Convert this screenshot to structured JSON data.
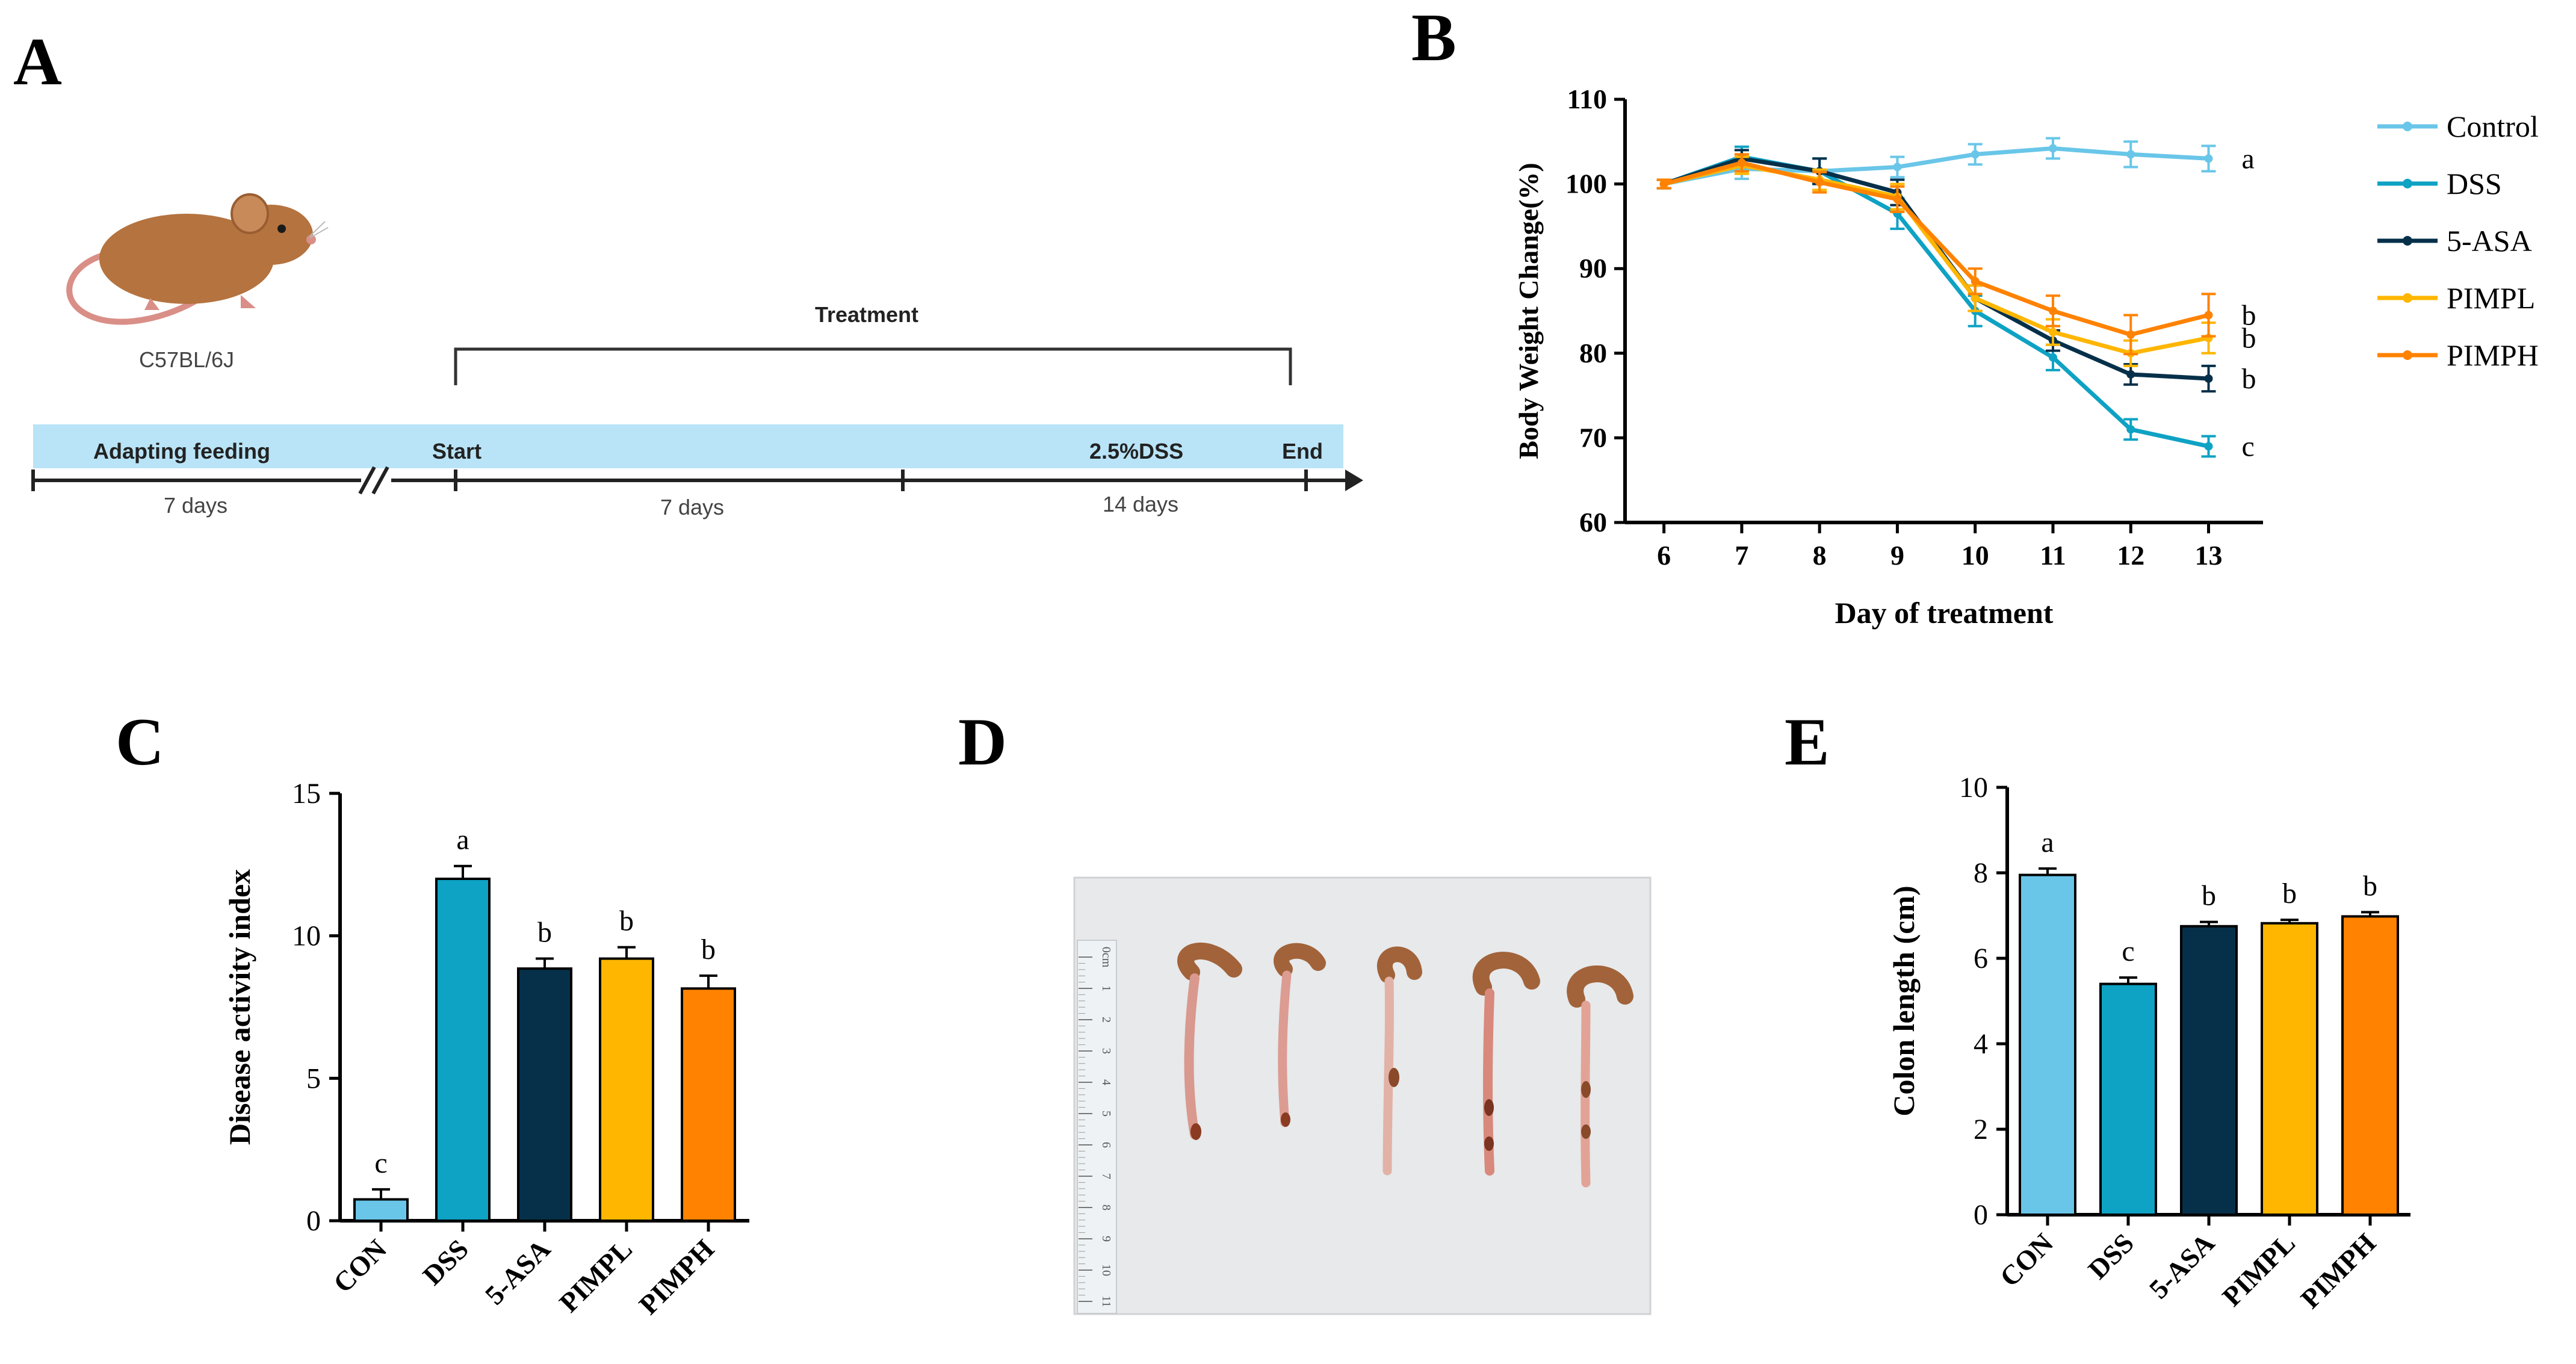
{
  "panel_labels": {
    "A": "A",
    "B": "B",
    "C": "C",
    "D": "D",
    "E": "E"
  },
  "colors": {
    "control": "#69c6e8",
    "dss": "#0ea2c4",
    "asa": "#06304a",
    "pimpl": "#ffb600",
    "pimph": "#ff8200",
    "timeline_bar": "#b9e4f7",
    "mouse_body": "#b5733f",
    "mouse_tail": "#d98f87"
  },
  "timeline": {
    "mouse_strain": "C57BL/6J",
    "treatment_label": "Treatment",
    "adapting_label": "Adapting feeding",
    "start_label": "Start",
    "dss_label": "2.5%DSS",
    "end_label": "End",
    "duration_1": "7 days",
    "duration_2": "7 days",
    "duration_3": "14 days"
  },
  "photo": {
    "ruler_numbers": [
      "0cm",
      "1",
      "2",
      "3",
      "4",
      "5",
      "6",
      "7",
      "8",
      "9",
      "10",
      "11"
    ]
  },
  "chart_data": [
    {
      "id": "B",
      "type": "line",
      "title": "",
      "xlabel": "Day of treatment",
      "ylabel": "Body Weight Change(%)",
      "x": [
        6,
        7,
        8,
        9,
        10,
        11,
        12,
        13
      ],
      "xlim": [
        5.5,
        13.7
      ],
      "ylim": [
        60,
        110
      ],
      "yticks": [
        60,
        70,
        80,
        90,
        100,
        110
      ],
      "legend_position": "right",
      "series": [
        {
          "name": "Control",
          "color_key": "control",
          "values": [
            100,
            101.8,
            101.5,
            102,
            103.5,
            104.2,
            103.5,
            103
          ],
          "errors": [
            0.5,
            1.2,
            1.5,
            1.2,
            1.2,
            1.2,
            1.5,
            1.5
          ],
          "letter": "a"
        },
        {
          "name": "DSS",
          "color_key": "dss",
          "values": [
            100,
            103.2,
            101.5,
            96.5,
            85,
            79.5,
            71,
            69
          ],
          "errors": [
            0.5,
            1.2,
            1.5,
            1.8,
            1.8,
            1.5,
            1.2,
            1.2
          ],
          "letter": "c"
        },
        {
          "name": "5-ASA",
          "color_key": "asa",
          "values": [
            100,
            103,
            101.5,
            99,
            86.5,
            81.5,
            77.5,
            77
          ],
          "errors": [
            0.5,
            1.0,
            1.5,
            1.5,
            1.5,
            1.2,
            1.2,
            1.5
          ],
          "letter": "b"
        },
        {
          "name": "PIMPL",
          "color_key": "pimpl",
          "values": [
            100,
            102.2,
            100.5,
            98.5,
            86.5,
            82.5,
            80,
            81.8
          ],
          "errors": [
            0.5,
            1.0,
            1.2,
            1.5,
            1.5,
            1.5,
            1.5,
            1.8
          ],
          "letter": "b"
        },
        {
          "name": "PIMPH",
          "color_key": "pimph",
          "values": [
            100,
            102.5,
            100.2,
            98.2,
            88.5,
            85,
            82.2,
            84.5
          ],
          "errors": [
            0.5,
            1.0,
            1.2,
            1.5,
            1.5,
            1.8,
            2.3,
            2.5
          ],
          "letter": "b"
        }
      ]
    },
    {
      "id": "C",
      "type": "bar",
      "title": "",
      "xlabel": "",
      "ylabel": "Disease activity index",
      "categories": [
        "CON",
        "DSS",
        "5-ASA",
        "PIMPL",
        "PIMPH"
      ],
      "values": [
        0.75,
        12,
        8.85,
        9.2,
        8.15
      ],
      "errors": [
        0.35,
        0.45,
        0.35,
        0.4,
        0.45
      ],
      "letters": [
        "c",
        "a",
        "b",
        "b",
        "b"
      ],
      "ylim": [
        0,
        15
      ],
      "yticks": [
        0,
        5,
        10,
        15
      ]
    },
    {
      "id": "E",
      "type": "bar",
      "title": "",
      "xlabel": "",
      "ylabel": "Colon length (cm)",
      "categories": [
        "CON",
        "DSS",
        "5-ASA",
        "PIMPL",
        "PIMPH"
      ],
      "values": [
        7.95,
        5.4,
        6.75,
        6.82,
        6.98
      ],
      "errors": [
        0.15,
        0.15,
        0.1,
        0.08,
        0.1
      ],
      "letters": [
        "a",
        "c",
        "b",
        "b",
        "b"
      ],
      "ylim": [
        0,
        10
      ],
      "yticks": [
        0,
        2,
        4,
        6,
        8,
        10
      ]
    }
  ]
}
